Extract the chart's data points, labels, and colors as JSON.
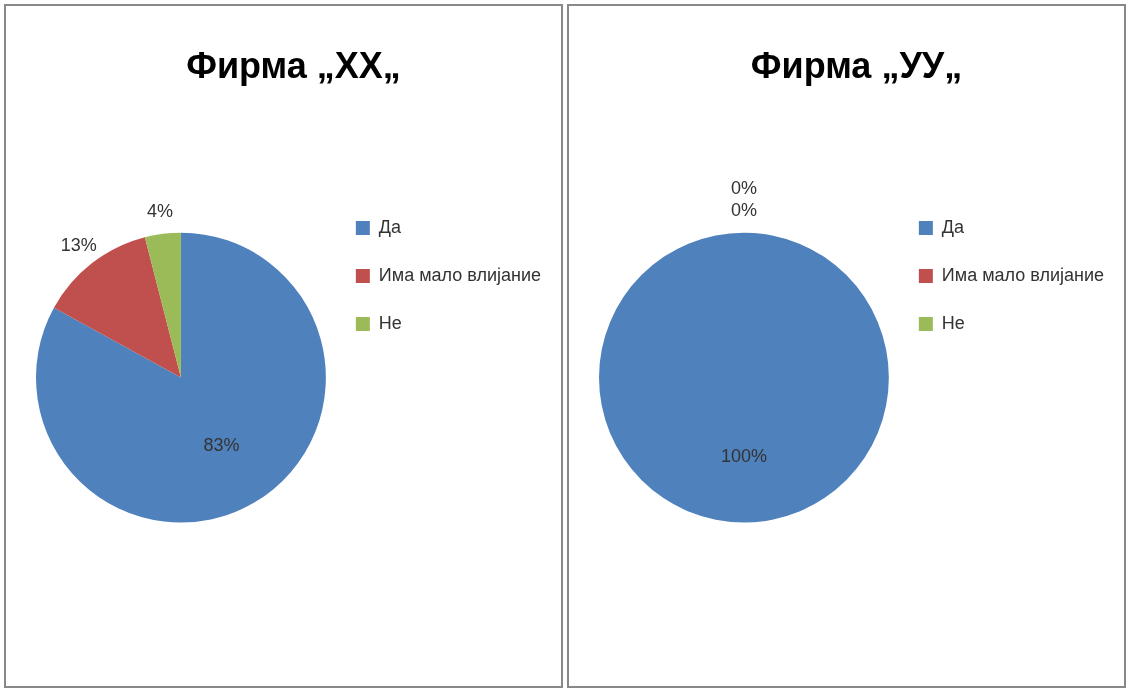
{
  "chart_data": [
    {
      "type": "pie",
      "title": "Фирма „XX„",
      "categories": [
        "Да",
        "Има мало влијание",
        "Не"
      ],
      "values": [
        83,
        13,
        4
      ],
      "colors": [
        "#4f81bd",
        "#c0504d",
        "#9bbb59"
      ],
      "value_labels": [
        "83%",
        "13%",
        "4%"
      ],
      "legend": "right"
    },
    {
      "type": "pie",
      "title": "Фирма „УУ„",
      "categories": [
        "Да",
        "Има мало влијание",
        "Не"
      ],
      "values": [
        100,
        0,
        0
      ],
      "colors": [
        "#4f81bd",
        "#c0504d",
        "#9bbb59"
      ],
      "value_labels": [
        "100%",
        "0%",
        "0%"
      ],
      "legend": "right"
    }
  ]
}
